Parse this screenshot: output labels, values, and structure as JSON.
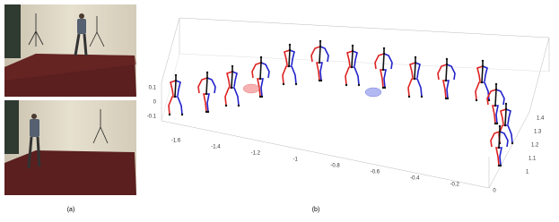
{
  "panels": {
    "a": {
      "label": "(a)"
    },
    "b": {
      "label": "(b)",
      "x_ticks": [
        "-1.6",
        "-1.4",
        "-1.2",
        "-1",
        "-0.8",
        "-0.6",
        "-0.4",
        "-0.2",
        "0"
      ],
      "y_ticks": [
        "0.1",
        "0",
        "-0.1"
      ],
      "z_ticks": [
        "1.4",
        "1.3",
        "1.2",
        "1.1",
        "1"
      ]
    }
  }
}
